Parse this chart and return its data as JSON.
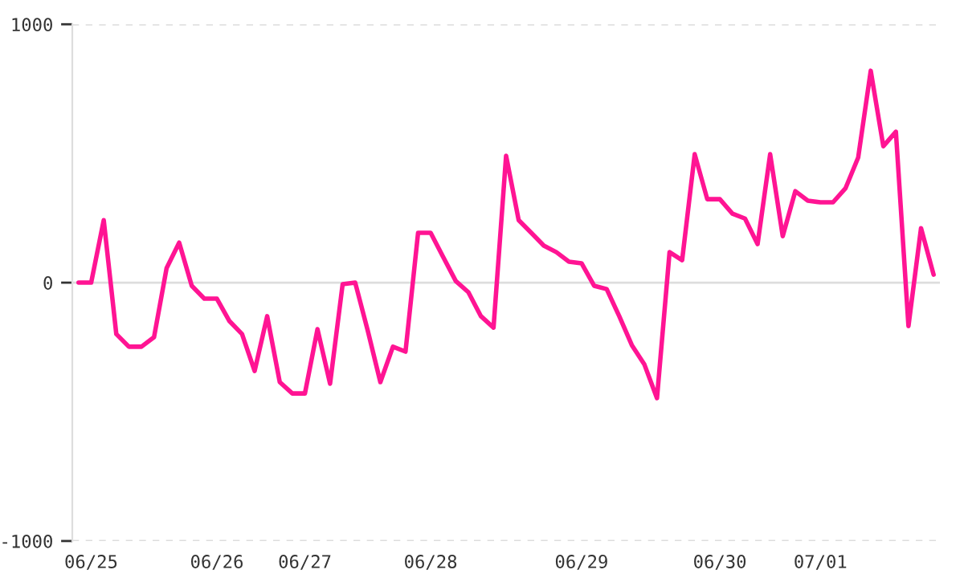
{
  "chart_data": {
    "type": "line",
    "categories": [
      null,
      "06/25",
      null,
      null,
      null,
      null,
      null,
      null,
      null,
      null,
      null,
      "06/26",
      null,
      null,
      null,
      null,
      null,
      null,
      "06/27",
      null,
      null,
      null,
      null,
      null,
      null,
      null,
      null,
      null,
      "06/28",
      null,
      null,
      null,
      null,
      null,
      null,
      null,
      null,
      null,
      null,
      null,
      "06/29",
      null,
      null,
      null,
      null,
      null,
      null,
      null,
      null,
      null,
      null,
      "06/30",
      null,
      null,
      null,
      null,
      null,
      null,
      null,
      "07/01",
      null,
      null,
      null,
      null,
      null,
      null,
      null,
      null,
      null
    ],
    "series": [
      {
        "color": "#ff1493",
        "values": [
          0,
          0,
          242,
          -199,
          -248,
          -248,
          -211,
          56,
          155,
          -12,
          -62,
          -62,
          -149,
          -199,
          -342,
          -130,
          -385,
          -429,
          -429,
          -180,
          -391,
          -6,
          0,
          -186,
          -385,
          -248,
          -267,
          193,
          193,
          99,
          6,
          -37,
          -130,
          -174,
          491,
          242,
          193,
          143,
          118,
          81,
          75,
          -12,
          -25,
          -130,
          -242,
          -317,
          -447,
          118,
          87,
          497,
          323,
          323,
          267,
          248,
          149,
          497,
          180,
          354,
          317,
          311,
          311,
          366,
          484,
          820,
          528,
          584,
          -168,
          211,
          31
        ]
      }
    ],
    "ylim": [
      -1000,
      1000
    ],
    "yticks": [
      -1000,
      0,
      1000
    ],
    "grid": "y",
    "legend": false,
    "marker": "none",
    "line_style": "solid"
  }
}
